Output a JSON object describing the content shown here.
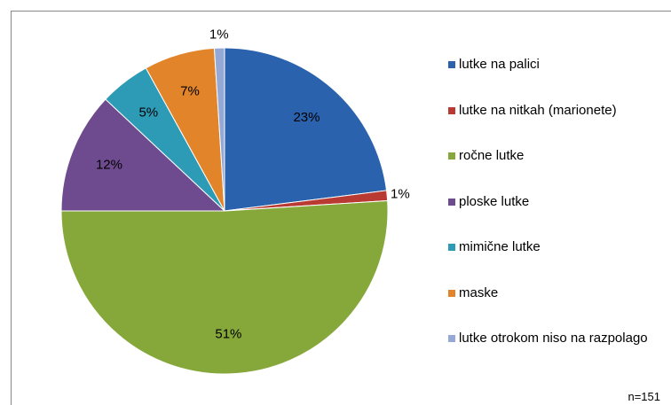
{
  "chart_data": {
    "type": "pie",
    "categories": [
      "lutke na palici",
      "lutke na nitkah (marionete)",
      "ročne lutke",
      "ploske lutke",
      "mimične lutke",
      "maske",
      "lutke otrokom niso na razpolago"
    ],
    "values": [
      23,
      1,
      51,
      12,
      5,
      7,
      1
    ],
    "value_labels": [
      "23%",
      "1%",
      "51%",
      "12%",
      "5%",
      "7%",
      "1%"
    ],
    "colors": [
      "#2a62ae",
      "#b83a33",
      "#86a83a",
      "#6e4a8e",
      "#2e9bb6",
      "#e1842a",
      "#94a9d6"
    ],
    "legend": "right",
    "note": "n=151"
  }
}
